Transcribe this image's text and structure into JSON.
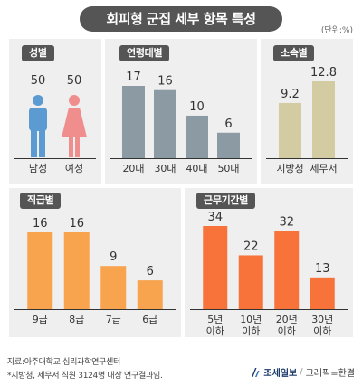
{
  "title": "회피형 군집 세부 항목 특성",
  "unit": "(단위:%)",
  "colors": {
    "gray_blue": "#8c9ba3",
    "beige": "#d3cca3",
    "orange_light": "#f8a44f",
    "orange_dark": "#f7733a",
    "male_blue": "#5c9ad2",
    "female_pink": "#f08d8d",
    "panel_bg": "#efefef",
    "tag_bg": "#555555"
  },
  "chart_data": [
    {
      "type": "bar",
      "title": "성별",
      "categories": [
        "남성",
        "여성"
      ],
      "values": [
        50,
        50
      ],
      "icons": [
        "male-figure",
        "female-figure"
      ]
    },
    {
      "type": "bar",
      "title": "연령대별",
      "categories": [
        "20대",
        "30대",
        "40대",
        "50대"
      ],
      "values": [
        17,
        16,
        10,
        6
      ],
      "color": "#8c9ba3"
    },
    {
      "type": "bar",
      "title": "소속별",
      "categories": [
        "지방청",
        "세무서"
      ],
      "values": [
        9.2,
        12.8
      ],
      "color": "#d3cca3"
    },
    {
      "type": "bar",
      "title": "직급별",
      "categories": [
        "9급",
        "8급",
        "7급",
        "6급"
      ],
      "values": [
        16,
        16,
        9,
        6
      ],
      "color": "#f8a44f"
    },
    {
      "type": "bar",
      "title": "근무기간별",
      "categories": [
        "5년\n이하",
        "10년\n이하",
        "20년\n이하",
        "30년\n이하"
      ],
      "values": [
        34,
        22,
        32,
        13
      ],
      "color": "#f7733a"
    }
  ],
  "footer": {
    "source": "자료:아주대학교 심리과학연구센터",
    "note": "*지방청, 세무서 직원 3124명 대상 연구결과임."
  },
  "credit": {
    "brand": "조세일보",
    "separator": "/",
    "graphic": "그래픽=한결"
  }
}
